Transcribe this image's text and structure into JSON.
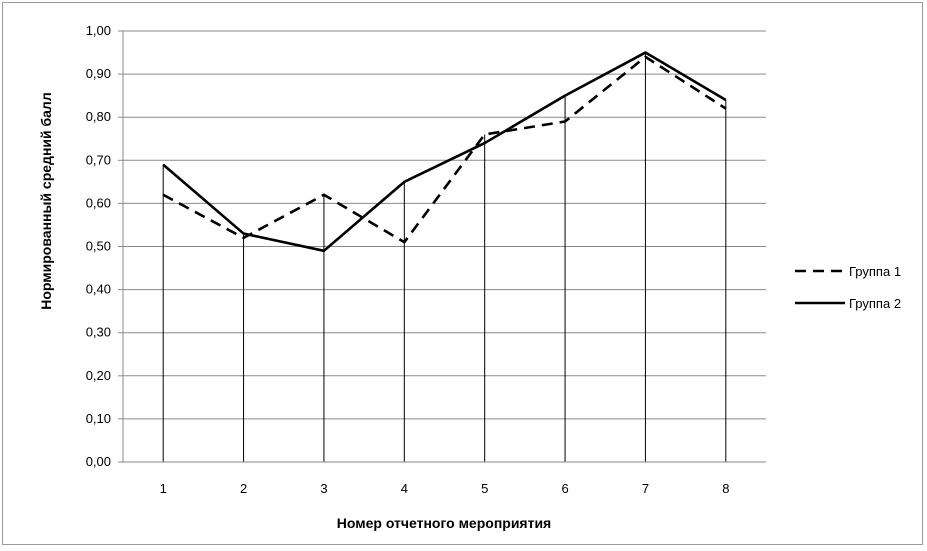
{
  "chart_data": {
    "type": "line",
    "xlabel": "Номер отчетного мероприятия",
    "ylabel": "Нормированный средний балл",
    "x": [
      1,
      2,
      3,
      4,
      5,
      6,
      7,
      8
    ],
    "categories": [
      "1",
      "2",
      "3",
      "4",
      "5",
      "6",
      "7",
      "8"
    ],
    "ylim": [
      0,
      1
    ],
    "yticks": [
      "0,00",
      "0,10",
      "0,20",
      "0,30",
      "0,40",
      "0,50",
      "0,60",
      "0,70",
      "0,80",
      "0,90",
      "1,00"
    ],
    "grid": "horizontal",
    "drop_lines": true,
    "legend": "right",
    "series": [
      {
        "name": "Группа 1",
        "style": "dashed",
        "color": "#000000",
        "values": [
          0.62,
          0.52,
          0.62,
          0.51,
          0.76,
          0.79,
          0.94,
          0.82
        ]
      },
      {
        "name": "Группа 2",
        "style": "solid",
        "color": "#000000",
        "values": [
          0.69,
          0.53,
          0.49,
          0.65,
          0.74,
          0.85,
          0.95,
          0.84
        ]
      }
    ]
  }
}
